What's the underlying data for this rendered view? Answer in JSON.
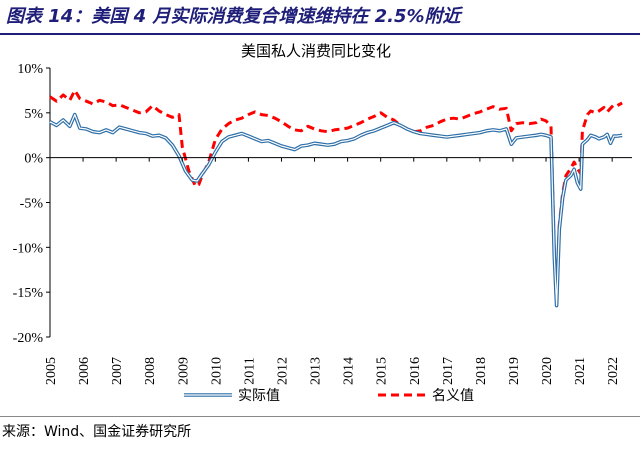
{
  "figure_title": "图表 14：美国 4 月实际消费复合增速维持在 2.5%附近",
  "source": "来源：Wind、国金证券研究所",
  "colors": {
    "real": "#2e6fa7",
    "nominal": "#ff0000",
    "title": "#1f1f7a"
  },
  "chart_data": {
    "type": "line",
    "title": "美国私人消费同比变化",
    "ylim": [
      -20,
      10
    ],
    "y_ticks": [
      "10%",
      "5%",
      "0%",
      "-5%",
      "-10%",
      "-15%",
      "-20%"
    ],
    "x_ticks": [
      "2005",
      "2006",
      "2007",
      "2008",
      "2009",
      "2010",
      "2011",
      "2012",
      "2013",
      "2014",
      "2015",
      "2016",
      "2017",
      "2018",
      "2019",
      "2020",
      "2021",
      "2022"
    ],
    "legend_position": "bottom",
    "series": [
      {
        "name": "实际值",
        "style": "double-line",
        "points": [
          [
            2005.0,
            4.0
          ],
          [
            2005.2,
            3.6
          ],
          [
            2005.4,
            4.2
          ],
          [
            2005.6,
            3.5
          ],
          [
            2005.75,
            4.8
          ],
          [
            2005.9,
            3.3
          ],
          [
            2006.1,
            3.2
          ],
          [
            2006.3,
            2.9
          ],
          [
            2006.5,
            2.8
          ],
          [
            2006.7,
            3.1
          ],
          [
            2006.9,
            2.8
          ],
          [
            2007.1,
            3.4
          ],
          [
            2007.3,
            3.2
          ],
          [
            2007.5,
            3.0
          ],
          [
            2007.7,
            2.8
          ],
          [
            2007.9,
            2.7
          ],
          [
            2008.1,
            2.4
          ],
          [
            2008.3,
            2.5
          ],
          [
            2008.5,
            2.2
          ],
          [
            2008.7,
            1.4
          ],
          [
            2008.9,
            0.2
          ],
          [
            2009.1,
            -1.5
          ],
          [
            2009.3,
            -2.5
          ],
          [
            2009.45,
            -2.6
          ],
          [
            2009.6,
            -1.8
          ],
          [
            2009.8,
            -0.8
          ],
          [
            2010.0,
            0.6
          ],
          [
            2010.2,
            1.8
          ],
          [
            2010.4,
            2.3
          ],
          [
            2010.6,
            2.5
          ],
          [
            2010.8,
            2.7
          ],
          [
            2011.0,
            2.4
          ],
          [
            2011.2,
            2.1
          ],
          [
            2011.4,
            1.8
          ],
          [
            2011.6,
            1.9
          ],
          [
            2011.8,
            1.6
          ],
          [
            2012.0,
            1.3
          ],
          [
            2012.2,
            1.1
          ],
          [
            2012.4,
            0.9
          ],
          [
            2012.6,
            1.3
          ],
          [
            2012.8,
            1.4
          ],
          [
            2013.0,
            1.6
          ],
          [
            2013.2,
            1.5
          ],
          [
            2013.4,
            1.4
          ],
          [
            2013.6,
            1.5
          ],
          [
            2013.8,
            1.8
          ],
          [
            2014.0,
            1.9
          ],
          [
            2014.2,
            2.1
          ],
          [
            2014.4,
            2.5
          ],
          [
            2014.6,
            2.8
          ],
          [
            2014.8,
            3.0
          ],
          [
            2015.0,
            3.3
          ],
          [
            2015.2,
            3.6
          ],
          [
            2015.4,
            3.9
          ],
          [
            2015.6,
            3.6
          ],
          [
            2015.8,
            3.2
          ],
          [
            2016.0,
            2.9
          ],
          [
            2016.2,
            2.7
          ],
          [
            2016.4,
            2.6
          ],
          [
            2016.6,
            2.5
          ],
          [
            2016.8,
            2.4
          ],
          [
            2017.0,
            2.3
          ],
          [
            2017.2,
            2.4
          ],
          [
            2017.4,
            2.5
          ],
          [
            2017.6,
            2.6
          ],
          [
            2017.8,
            2.7
          ],
          [
            2018.0,
            2.8
          ],
          [
            2018.2,
            3.0
          ],
          [
            2018.4,
            3.1
          ],
          [
            2018.6,
            3.0
          ],
          [
            2018.8,
            3.2
          ],
          [
            2018.95,
            1.5
          ],
          [
            2019.1,
            2.2
          ],
          [
            2019.3,
            2.3
          ],
          [
            2019.5,
            2.4
          ],
          [
            2019.7,
            2.5
          ],
          [
            2019.85,
            2.6
          ],
          [
            2020.0,
            2.5
          ],
          [
            2020.15,
            2.3
          ],
          [
            2020.25,
            -11.0
          ],
          [
            2020.32,
            -16.5
          ],
          [
            2020.4,
            -8.0
          ],
          [
            2020.5,
            -4.5
          ],
          [
            2020.6,
            -2.5
          ],
          [
            2020.75,
            -2.0
          ],
          [
            2020.85,
            -1.3
          ],
          [
            2020.95,
            -2.8
          ],
          [
            2021.05,
            -3.5
          ],
          [
            2021.1,
            1.5
          ],
          [
            2021.25,
            2.0
          ],
          [
            2021.35,
            2.5
          ],
          [
            2021.5,
            2.3
          ],
          [
            2021.6,
            2.1
          ],
          [
            2021.75,
            2.3
          ],
          [
            2021.85,
            2.6
          ],
          [
            2021.95,
            1.6
          ],
          [
            2022.05,
            2.4
          ],
          [
            2022.15,
            2.4
          ],
          [
            2022.3,
            2.5
          ]
        ]
      },
      {
        "name": "名义值",
        "style": "dashed",
        "points": [
          [
            2005.0,
            6.8
          ],
          [
            2005.2,
            6.3
          ],
          [
            2005.4,
            7.0
          ],
          [
            2005.6,
            6.4
          ],
          [
            2005.75,
            7.5
          ],
          [
            2005.9,
            6.6
          ],
          [
            2006.1,
            6.3
          ],
          [
            2006.3,
            6.0
          ],
          [
            2006.5,
            6.4
          ],
          [
            2006.7,
            6.2
          ],
          [
            2006.9,
            5.8
          ],
          [
            2007.1,
            5.9
          ],
          [
            2007.3,
            5.6
          ],
          [
            2007.5,
            5.3
          ],
          [
            2007.7,
            5.0
          ],
          [
            2007.9,
            5.1
          ],
          [
            2008.1,
            5.8
          ],
          [
            2008.3,
            5.2
          ],
          [
            2008.5,
            4.8
          ],
          [
            2008.7,
            4.5
          ],
          [
            2008.9,
            4.8
          ],
          [
            2009.0,
            1.2
          ],
          [
            2009.2,
            -1.5
          ],
          [
            2009.4,
            -3.2
          ],
          [
            2009.5,
            -3.0
          ],
          [
            2009.6,
            -2.0
          ],
          [
            2009.8,
            -0.5
          ],
          [
            2010.0,
            2.0
          ],
          [
            2010.2,
            3.2
          ],
          [
            2010.4,
            3.8
          ],
          [
            2010.6,
            4.2
          ],
          [
            2010.8,
            4.4
          ],
          [
            2011.0,
            4.8
          ],
          [
            2011.2,
            5.1
          ],
          [
            2011.4,
            4.8
          ],
          [
            2011.6,
            4.7
          ],
          [
            2011.8,
            4.4
          ],
          [
            2012.0,
            4.0
          ],
          [
            2012.2,
            3.5
          ],
          [
            2012.4,
            3.1
          ],
          [
            2012.6,
            3.0
          ],
          [
            2012.8,
            3.5
          ],
          [
            2013.0,
            3.2
          ],
          [
            2013.2,
            3.0
          ],
          [
            2013.4,
            2.9
          ],
          [
            2013.6,
            3.1
          ],
          [
            2013.8,
            3.2
          ],
          [
            2014.0,
            3.3
          ],
          [
            2014.2,
            3.6
          ],
          [
            2014.4,
            3.9
          ],
          [
            2014.6,
            4.3
          ],
          [
            2014.8,
            4.6
          ],
          [
            2015.0,
            5.0
          ],
          [
            2015.2,
            4.5
          ],
          [
            2015.4,
            4.2
          ],
          [
            2015.6,
            3.6
          ],
          [
            2015.8,
            3.2
          ],
          [
            2016.0,
            2.9
          ],
          [
            2016.2,
            3.0
          ],
          [
            2016.4,
            3.4
          ],
          [
            2016.6,
            3.6
          ],
          [
            2016.8,
            4.0
          ],
          [
            2017.0,
            4.3
          ],
          [
            2017.2,
            4.4
          ],
          [
            2017.4,
            4.3
          ],
          [
            2017.6,
            4.6
          ],
          [
            2017.8,
            4.9
          ],
          [
            2018.0,
            5.1
          ],
          [
            2018.2,
            5.4
          ],
          [
            2018.4,
            5.7
          ],
          [
            2018.6,
            5.4
          ],
          [
            2018.8,
            5.5
          ],
          [
            2018.95,
            3.0
          ],
          [
            2019.1,
            3.8
          ],
          [
            2019.3,
            3.9
          ],
          [
            2019.5,
            3.8
          ],
          [
            2019.7,
            3.9
          ],
          [
            2019.85,
            4.3
          ],
          [
            2020.0,
            4.1
          ],
          [
            2020.15,
            3.5
          ],
          [
            2020.25,
            -10.5
          ],
          [
            2020.32,
            -16.0
          ],
          [
            2020.4,
            -7.5
          ],
          [
            2020.5,
            -4.0
          ],
          [
            2020.6,
            -2.0
          ],
          [
            2020.75,
            -1.2
          ],
          [
            2020.85,
            -0.5
          ],
          [
            2020.95,
            -1.2
          ],
          [
            2021.05,
            -1.8
          ],
          [
            2021.1,
            3.0
          ],
          [
            2021.25,
            4.8
          ],
          [
            2021.35,
            5.2
          ],
          [
            2021.5,
            5.0
          ],
          [
            2021.6,
            5.2
          ],
          [
            2021.75,
            5.6
          ],
          [
            2021.85,
            5.1
          ],
          [
            2021.95,
            5.5
          ],
          [
            2022.05,
            5.9
          ],
          [
            2022.15,
            5.8
          ],
          [
            2022.3,
            6.1
          ]
        ]
      }
    ]
  }
}
